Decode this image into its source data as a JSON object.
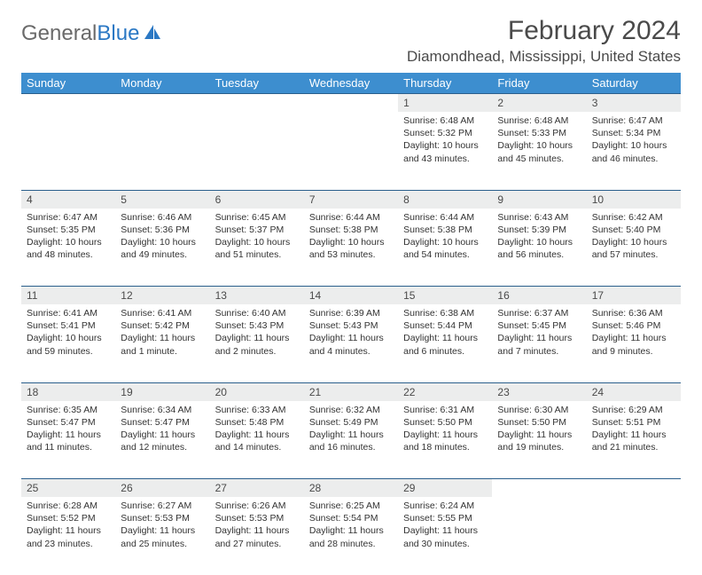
{
  "logo": {
    "text1": "General",
    "text2": "Blue"
  },
  "title": "February 2024",
  "location": "Diamondhead, Mississippi, United States",
  "colors": {
    "header_bg": "#3d8ecf",
    "header_text": "#ffffff",
    "daynum_bg": "#eceded",
    "border": "#2b5f8c",
    "body_bg": "#ffffff",
    "text": "#333333",
    "title_text": "#4a4a4a"
  },
  "weekdays": [
    "Sunday",
    "Monday",
    "Tuesday",
    "Wednesday",
    "Thursday",
    "Friday",
    "Saturday"
  ],
  "weeks": [
    [
      null,
      null,
      null,
      null,
      {
        "n": "1",
        "sr": "Sunrise: 6:48 AM",
        "ss": "Sunset: 5:32 PM",
        "dl": "Daylight: 10 hours and 43 minutes."
      },
      {
        "n": "2",
        "sr": "Sunrise: 6:48 AM",
        "ss": "Sunset: 5:33 PM",
        "dl": "Daylight: 10 hours and 45 minutes."
      },
      {
        "n": "3",
        "sr": "Sunrise: 6:47 AM",
        "ss": "Sunset: 5:34 PM",
        "dl": "Daylight: 10 hours and 46 minutes."
      }
    ],
    [
      {
        "n": "4",
        "sr": "Sunrise: 6:47 AM",
        "ss": "Sunset: 5:35 PM",
        "dl": "Daylight: 10 hours and 48 minutes."
      },
      {
        "n": "5",
        "sr": "Sunrise: 6:46 AM",
        "ss": "Sunset: 5:36 PM",
        "dl": "Daylight: 10 hours and 49 minutes."
      },
      {
        "n": "6",
        "sr": "Sunrise: 6:45 AM",
        "ss": "Sunset: 5:37 PM",
        "dl": "Daylight: 10 hours and 51 minutes."
      },
      {
        "n": "7",
        "sr": "Sunrise: 6:44 AM",
        "ss": "Sunset: 5:38 PM",
        "dl": "Daylight: 10 hours and 53 minutes."
      },
      {
        "n": "8",
        "sr": "Sunrise: 6:44 AM",
        "ss": "Sunset: 5:38 PM",
        "dl": "Daylight: 10 hours and 54 minutes."
      },
      {
        "n": "9",
        "sr": "Sunrise: 6:43 AM",
        "ss": "Sunset: 5:39 PM",
        "dl": "Daylight: 10 hours and 56 minutes."
      },
      {
        "n": "10",
        "sr": "Sunrise: 6:42 AM",
        "ss": "Sunset: 5:40 PM",
        "dl": "Daylight: 10 hours and 57 minutes."
      }
    ],
    [
      {
        "n": "11",
        "sr": "Sunrise: 6:41 AM",
        "ss": "Sunset: 5:41 PM",
        "dl": "Daylight: 10 hours and 59 minutes."
      },
      {
        "n": "12",
        "sr": "Sunrise: 6:41 AM",
        "ss": "Sunset: 5:42 PM",
        "dl": "Daylight: 11 hours and 1 minute."
      },
      {
        "n": "13",
        "sr": "Sunrise: 6:40 AM",
        "ss": "Sunset: 5:43 PM",
        "dl": "Daylight: 11 hours and 2 minutes."
      },
      {
        "n": "14",
        "sr": "Sunrise: 6:39 AM",
        "ss": "Sunset: 5:43 PM",
        "dl": "Daylight: 11 hours and 4 minutes."
      },
      {
        "n": "15",
        "sr": "Sunrise: 6:38 AM",
        "ss": "Sunset: 5:44 PM",
        "dl": "Daylight: 11 hours and 6 minutes."
      },
      {
        "n": "16",
        "sr": "Sunrise: 6:37 AM",
        "ss": "Sunset: 5:45 PM",
        "dl": "Daylight: 11 hours and 7 minutes."
      },
      {
        "n": "17",
        "sr": "Sunrise: 6:36 AM",
        "ss": "Sunset: 5:46 PM",
        "dl": "Daylight: 11 hours and 9 minutes."
      }
    ],
    [
      {
        "n": "18",
        "sr": "Sunrise: 6:35 AM",
        "ss": "Sunset: 5:47 PM",
        "dl": "Daylight: 11 hours and 11 minutes."
      },
      {
        "n": "19",
        "sr": "Sunrise: 6:34 AM",
        "ss": "Sunset: 5:47 PM",
        "dl": "Daylight: 11 hours and 12 minutes."
      },
      {
        "n": "20",
        "sr": "Sunrise: 6:33 AM",
        "ss": "Sunset: 5:48 PM",
        "dl": "Daylight: 11 hours and 14 minutes."
      },
      {
        "n": "21",
        "sr": "Sunrise: 6:32 AM",
        "ss": "Sunset: 5:49 PM",
        "dl": "Daylight: 11 hours and 16 minutes."
      },
      {
        "n": "22",
        "sr": "Sunrise: 6:31 AM",
        "ss": "Sunset: 5:50 PM",
        "dl": "Daylight: 11 hours and 18 minutes."
      },
      {
        "n": "23",
        "sr": "Sunrise: 6:30 AM",
        "ss": "Sunset: 5:50 PM",
        "dl": "Daylight: 11 hours and 19 minutes."
      },
      {
        "n": "24",
        "sr": "Sunrise: 6:29 AM",
        "ss": "Sunset: 5:51 PM",
        "dl": "Daylight: 11 hours and 21 minutes."
      }
    ],
    [
      {
        "n": "25",
        "sr": "Sunrise: 6:28 AM",
        "ss": "Sunset: 5:52 PM",
        "dl": "Daylight: 11 hours and 23 minutes."
      },
      {
        "n": "26",
        "sr": "Sunrise: 6:27 AM",
        "ss": "Sunset: 5:53 PM",
        "dl": "Daylight: 11 hours and 25 minutes."
      },
      {
        "n": "27",
        "sr": "Sunrise: 6:26 AM",
        "ss": "Sunset: 5:53 PM",
        "dl": "Daylight: 11 hours and 27 minutes."
      },
      {
        "n": "28",
        "sr": "Sunrise: 6:25 AM",
        "ss": "Sunset: 5:54 PM",
        "dl": "Daylight: 11 hours and 28 minutes."
      },
      {
        "n": "29",
        "sr": "Sunrise: 6:24 AM",
        "ss": "Sunset: 5:55 PM",
        "dl": "Daylight: 11 hours and 30 minutes."
      },
      null,
      null
    ]
  ]
}
